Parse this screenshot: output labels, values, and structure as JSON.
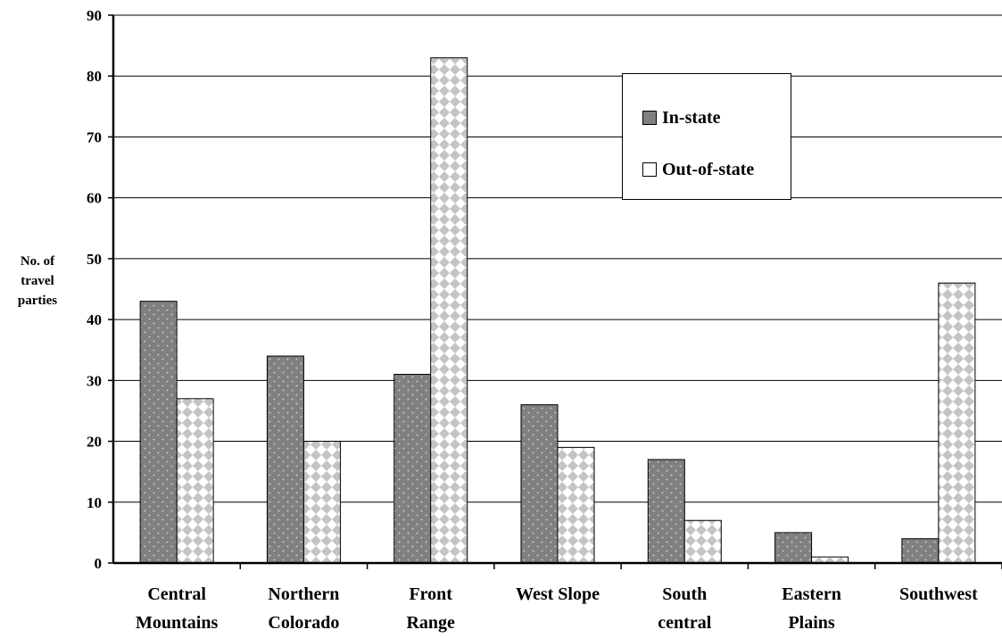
{
  "chart_data": {
    "type": "bar",
    "categories": [
      [
        "Central",
        "Mountains"
      ],
      [
        "Northern",
        "Colorado"
      ],
      [
        "Front",
        "Range"
      ],
      [
        "West Slope"
      ],
      [
        "South",
        "central"
      ],
      [
        "Eastern",
        "Plains"
      ],
      [
        "Southwest"
      ]
    ],
    "series": [
      {
        "name": "In-state",
        "values": [
          43,
          34,
          31,
          26,
          17,
          5,
          4
        ],
        "color": "#808080",
        "pattern": "dots"
      },
      {
        "name": "Out-of-state",
        "values": [
          27,
          20,
          83,
          19,
          7,
          1,
          46
        ],
        "color": "#c8c8c8",
        "pattern": "checker"
      }
    ],
    "ylabel": [
      "No. of",
      "travel",
      "parties"
    ],
    "ylim": [
      0,
      90
    ],
    "yticks": [
      0,
      10,
      20,
      30,
      40,
      50,
      60,
      70,
      80,
      90
    ],
    "grid": true,
    "legend_position": "top-right"
  }
}
